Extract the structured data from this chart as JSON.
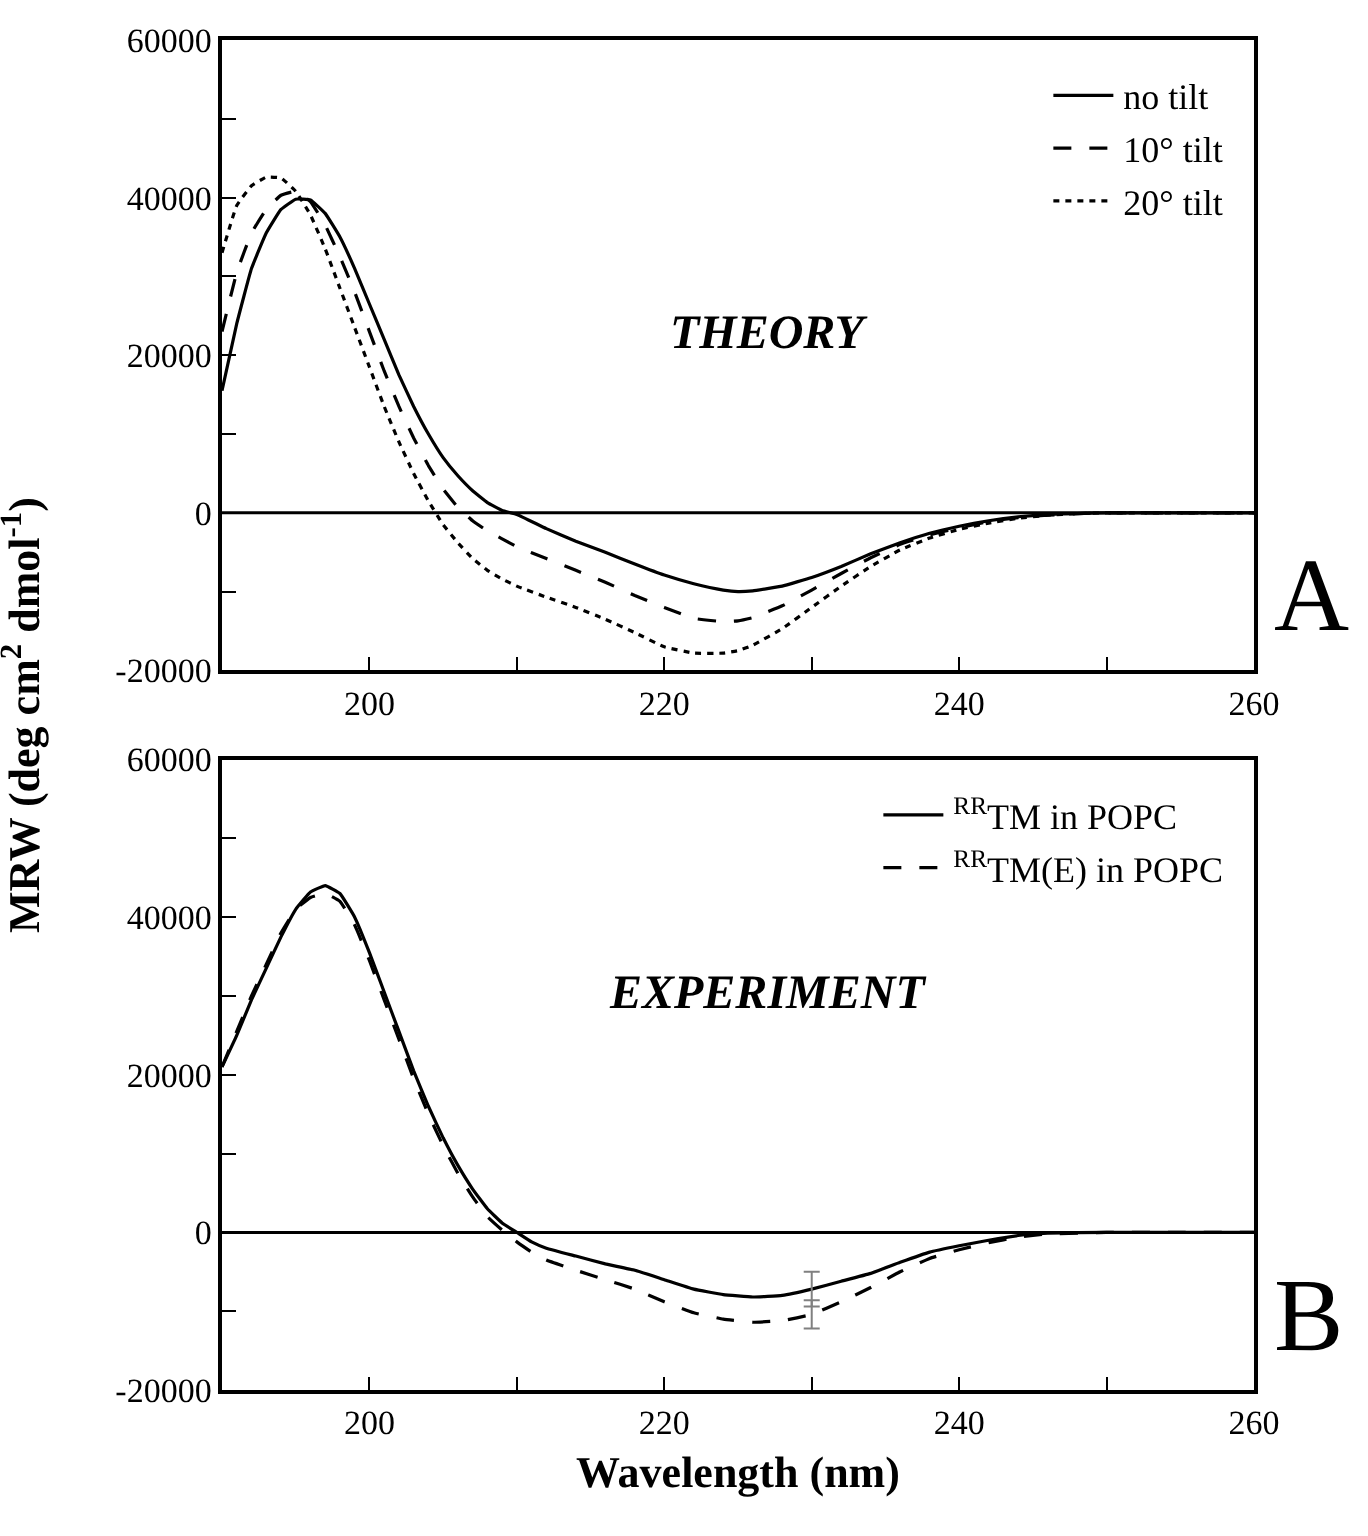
{
  "chart_data": [
    {
      "type": "line",
      "annotations": [
        "THEORY",
        "A"
      ],
      "legend": "top right",
      "marker": "none",
      "xlim": [
        190,
        260
      ],
      "xticks": [
        200,
        {
          "value": 210,
          "label": null
        },
        220,
        {
          "value": 230,
          "label": null
        },
        240,
        {
          "value": 250,
          "label": null
        },
        260
      ],
      "ylim": [
        -20000,
        60000
      ],
      "yticks": [
        -20000,
        {
          "value": -10000,
          "label": null
        },
        0,
        {
          "value": 10000,
          "label": null
        },
        20000,
        {
          "value": 30000,
          "label": null
        },
        40000,
        {
          "value": 50000,
          "label": null
        },
        60000
      ],
      "ref_lines": [
        {
          "axis": "y",
          "value": 0,
          "color": "#000000"
        }
      ],
      "x": [
        190,
        191,
        192,
        193,
        194,
        195,
        196,
        197,
        198,
        199,
        200,
        201,
        202,
        203,
        204,
        205,
        206,
        207,
        208,
        209,
        210,
        212,
        214,
        216,
        218,
        220,
        222,
        224,
        225,
        226,
        228,
        230,
        232,
        234,
        236,
        238,
        240,
        242,
        244,
        246,
        248,
        250,
        255,
        260
      ],
      "series": [
        {
          "name": "no tilt",
          "color": "#000000",
          "line_style": "solid",
          "values": [
            15500,
            24000,
            31000,
            35500,
            38500,
            39800,
            39700,
            38000,
            35000,
            31000,
            26500,
            22000,
            17500,
            13500,
            10000,
            7000,
            4700,
            2800,
            1300,
            300,
            -200,
            -2000,
            -3600,
            -5000,
            -6500,
            -7900,
            -9000,
            -9800,
            -10000,
            -9900,
            -9300,
            -8200,
            -6800,
            -5200,
            -3800,
            -2600,
            -1700,
            -1000,
            -500,
            -200,
            -100,
            0,
            0,
            0
          ]
        },
        {
          "name": "10° tilt",
          "color": "#000000",
          "line_style": "dashed",
          "values": [
            23000,
            30500,
            35500,
            38500,
            40300,
            40800,
            39500,
            36500,
            32500,
            28000,
            23000,
            18000,
            13500,
            9500,
            6000,
            3000,
            700,
            -1000,
            -2300,
            -3300,
            -4300,
            -5800,
            -7300,
            -8800,
            -10500,
            -12000,
            -13400,
            -13800,
            -13700,
            -13300,
            -11800,
            -9800,
            -7700,
            -5700,
            -4000,
            -2800,
            -1900,
            -1100,
            -600,
            -300,
            -100,
            0,
            0,
            0
          ]
        },
        {
          "name": "20° tilt",
          "color": "#000000",
          "line_style": "dotted",
          "values": [
            33000,
            39000,
            41500,
            42600,
            42500,
            40800,
            37800,
            33500,
            28500,
            23500,
            18500,
            13500,
            9000,
            5000,
            1500,
            -1500,
            -3800,
            -5800,
            -7300,
            -8400,
            -9300,
            -10700,
            -12000,
            -13500,
            -15200,
            -17000,
            -17800,
            -17800,
            -17500,
            -16800,
            -14700,
            -12000,
            -9300,
            -6800,
            -4700,
            -3200,
            -2100,
            -1300,
            -700,
            -300,
            -100,
            0,
            0,
            0
          ]
        }
      ]
    },
    {
      "type": "line",
      "annotations": [
        "EXPERIMENT",
        "B"
      ],
      "legend": "top right",
      "marker": "none",
      "xlabel": "Wavelength (nm)",
      "ylabel": "MRW (deg cm$^{2}$ dmol$^{-1}$)",
      "xlim": [
        190,
        260
      ],
      "xticks": [
        200,
        {
          "value": 210,
          "label": null
        },
        220,
        {
          "value": 230,
          "label": null
        },
        240,
        {
          "value": 250,
          "label": null
        },
        260
      ],
      "ylim": [
        -20000,
        60000
      ],
      "yticks": [
        -20000,
        {
          "value": -10000,
          "label": null
        },
        0,
        {
          "value": 10000,
          "label": null
        },
        20000,
        {
          "value": 30000,
          "label": null
        },
        40000,
        {
          "value": 50000,
          "label": null
        },
        60000
      ],
      "ref_lines": [
        {
          "axis": "y",
          "value": 0,
          "color": "#000000"
        }
      ],
      "x": [
        190,
        191,
        192,
        193,
        194,
        195,
        196,
        197,
        198,
        199,
        200,
        201,
        202,
        203,
        204,
        205,
        206,
        207,
        208,
        209,
        210,
        211,
        212,
        214,
        216,
        218,
        220,
        222,
        224,
        226,
        228,
        230,
        232,
        234,
        236,
        238,
        240,
        242,
        244,
        246,
        250,
        255,
        260
      ],
      "series": [
        {
          "name": "$^{RR}$TM in POPC",
          "color": "#000000",
          "line_style": "solid",
          "values": [
            21000,
            25000,
            29500,
            33500,
            37500,
            41000,
            43200,
            44000,
            43000,
            40000,
            35500,
            30500,
            25500,
            20500,
            16000,
            12000,
            8500,
            5500,
            3000,
            1200,
            0,
            -1200,
            -2000,
            -3000,
            -4000,
            -4800,
            -6000,
            -7200,
            -7900,
            -8200,
            -8000,
            -7200,
            -6200,
            -5200,
            -3800,
            -2500,
            -1700,
            -1000,
            -400,
            -100,
            0,
            0,
            0
          ],
          "errors": [
            null,
            null,
            null,
            null,
            null,
            null,
            null,
            null,
            null,
            null,
            null,
            null,
            null,
            null,
            null,
            null,
            null,
            null,
            null,
            null,
            null,
            null,
            null,
            null,
            null,
            null,
            null,
            null,
            null,
            null,
            null,
            2200,
            null,
            null,
            null,
            null,
            null,
            null,
            null,
            null,
            null,
            null,
            null
          ]
        },
        {
          "name": "$^{RR}$TM(E) in POPC",
          "color": "#000000",
          "line_style": "dashed",
          "values": [
            21000,
            25500,
            30000,
            34000,
            38000,
            41000,
            42500,
            43000,
            42000,
            39000,
            34500,
            29500,
            24500,
            19500,
            15000,
            11000,
            7500,
            4500,
            2000,
            300,
            -1200,
            -2500,
            -3500,
            -4800,
            -6000,
            -7200,
            -8800,
            -10200,
            -11000,
            -11400,
            -11200,
            -10400,
            -8800,
            -7000,
            -5000,
            -3300,
            -2200,
            -1300,
            -600,
            -200,
            0,
            0,
            0
          ],
          "errors": [
            null,
            null,
            null,
            null,
            null,
            null,
            null,
            null,
            null,
            null,
            null,
            null,
            null,
            null,
            null,
            null,
            null,
            null,
            null,
            null,
            null,
            null,
            null,
            null,
            null,
            null,
            null,
            null,
            null,
            null,
            null,
            1800,
            null,
            null,
            null,
            null,
            null,
            null,
            null,
            null,
            null,
            null,
            null
          ]
        }
      ]
    }
  ]
}
